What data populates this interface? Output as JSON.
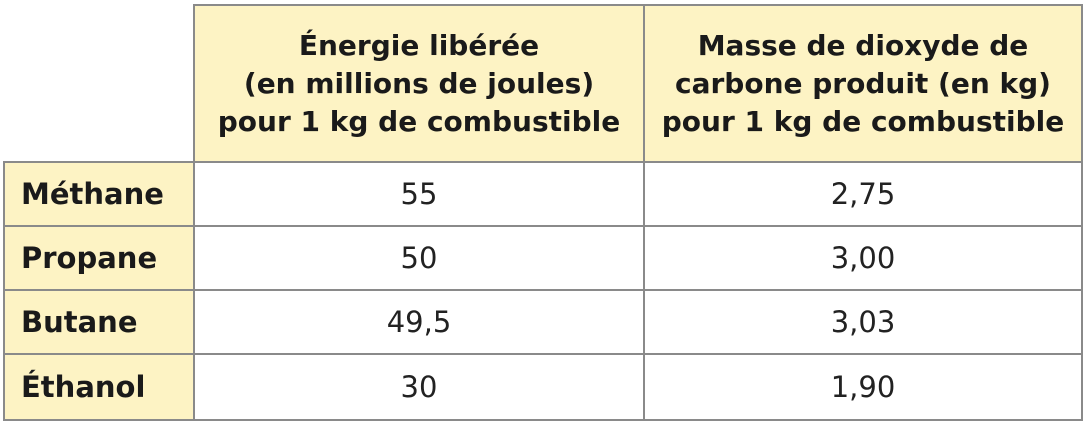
{
  "table": {
    "headers": [
      [
        "Énergie libérée",
        "(en millions de joules)",
        "pour 1 kg de combustible"
      ],
      [
        "Masse de dioxyde de",
        "carbone produit (en kg)",
        "pour 1 kg de combustible"
      ]
    ],
    "rows": [
      {
        "label": "Méthane",
        "energy": "55",
        "co2": "2,75"
      },
      {
        "label": "Propane",
        "energy": "50",
        "co2": "3,00"
      },
      {
        "label": "Butane",
        "energy": "49,5",
        "co2": "3,03"
      },
      {
        "label": "Éthanol",
        "energy": "30",
        "co2": "1,90"
      }
    ]
  },
  "colors": {
    "header_bg": "#fdf3c4",
    "border": "#8a8a8a"
  }
}
